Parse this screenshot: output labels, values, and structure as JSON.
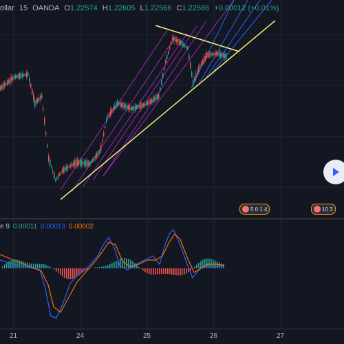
{
  "header": {
    "symbol_fragment": "ollar",
    "interval": "15",
    "exchange": "OANDA",
    "o_label": "O",
    "o_value": "1.22574",
    "h_label": "H",
    "h_value": "1.22605",
    "l_label": "L",
    "l_value": "1.22566",
    "c_label": "C",
    "c_value": "1.22586",
    "change": "+0.00012 (+0.01%)"
  },
  "macd": {
    "label_fragment": "e 9",
    "hist": "0.00011",
    "macd": "0.00013",
    "signal": "0.00002"
  },
  "xaxis": {
    "ticks": [
      "21",
      "24",
      "25",
      "26",
      "27"
    ]
  },
  "events": [
    {
      "text": "5 0 1 4"
    },
    {
      "text": "10 3"
    }
  ],
  "colors": {
    "background": "#131722",
    "up": "#26a69a",
    "down": "#ef5350",
    "channel": "#9c27b0",
    "fan": "#2962ff",
    "trendline": "#f5f17a",
    "macd_line": "#2962ff",
    "signal_line": "#ff6d00"
  },
  "icons": {
    "nav": "play-arrow-icon"
  }
}
